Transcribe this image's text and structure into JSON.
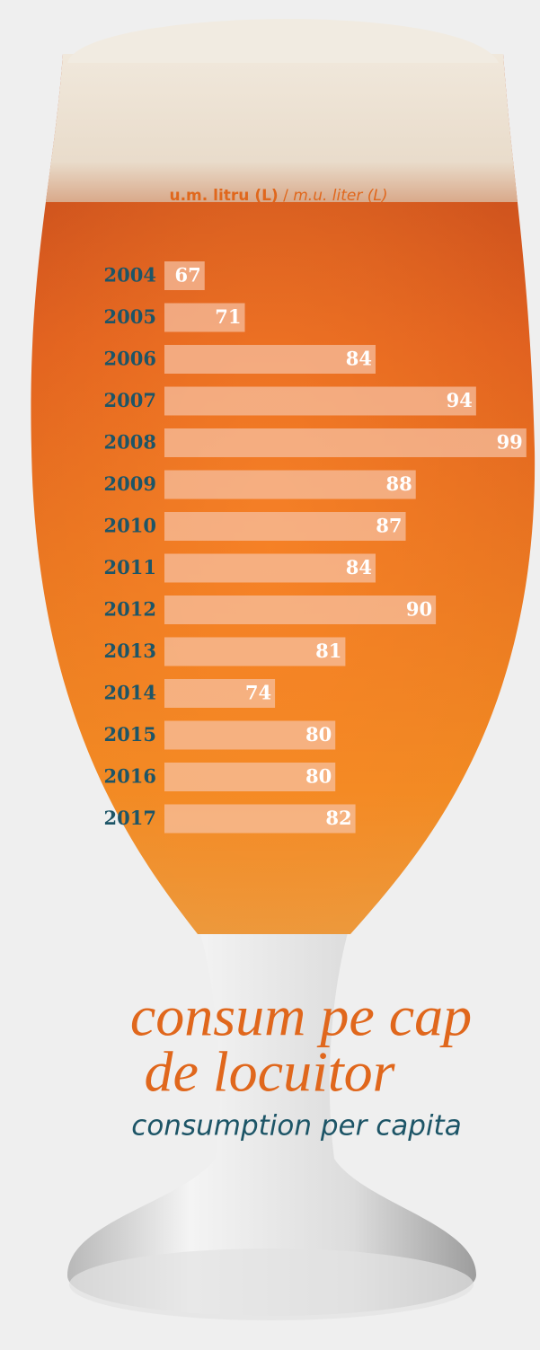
{
  "chart_data": {
    "type": "bar",
    "orientation": "horizontal",
    "unit_ro": "u.m. litru (L)",
    "separator": "/",
    "unit_en": "m.u. liter (L)",
    "title_lines": [
      "consum pe cap",
      "de locuitor"
    ],
    "subtitle": "consumption per capita",
    "categories": [
      "2004",
      "2005",
      "2006",
      "2007",
      "2008",
      "2009",
      "2010",
      "2011",
      "2012",
      "2013",
      "2014",
      "2015",
      "2016",
      "2017"
    ],
    "values": [
      67,
      71,
      84,
      94,
      99,
      88,
      87,
      84,
      90,
      81,
      74,
      80,
      80,
      82
    ],
    "xlim": [
      63,
      100
    ],
    "color": "#f7c3a6",
    "label_color": "#1d5567",
    "title_color": "#e0671c"
  }
}
